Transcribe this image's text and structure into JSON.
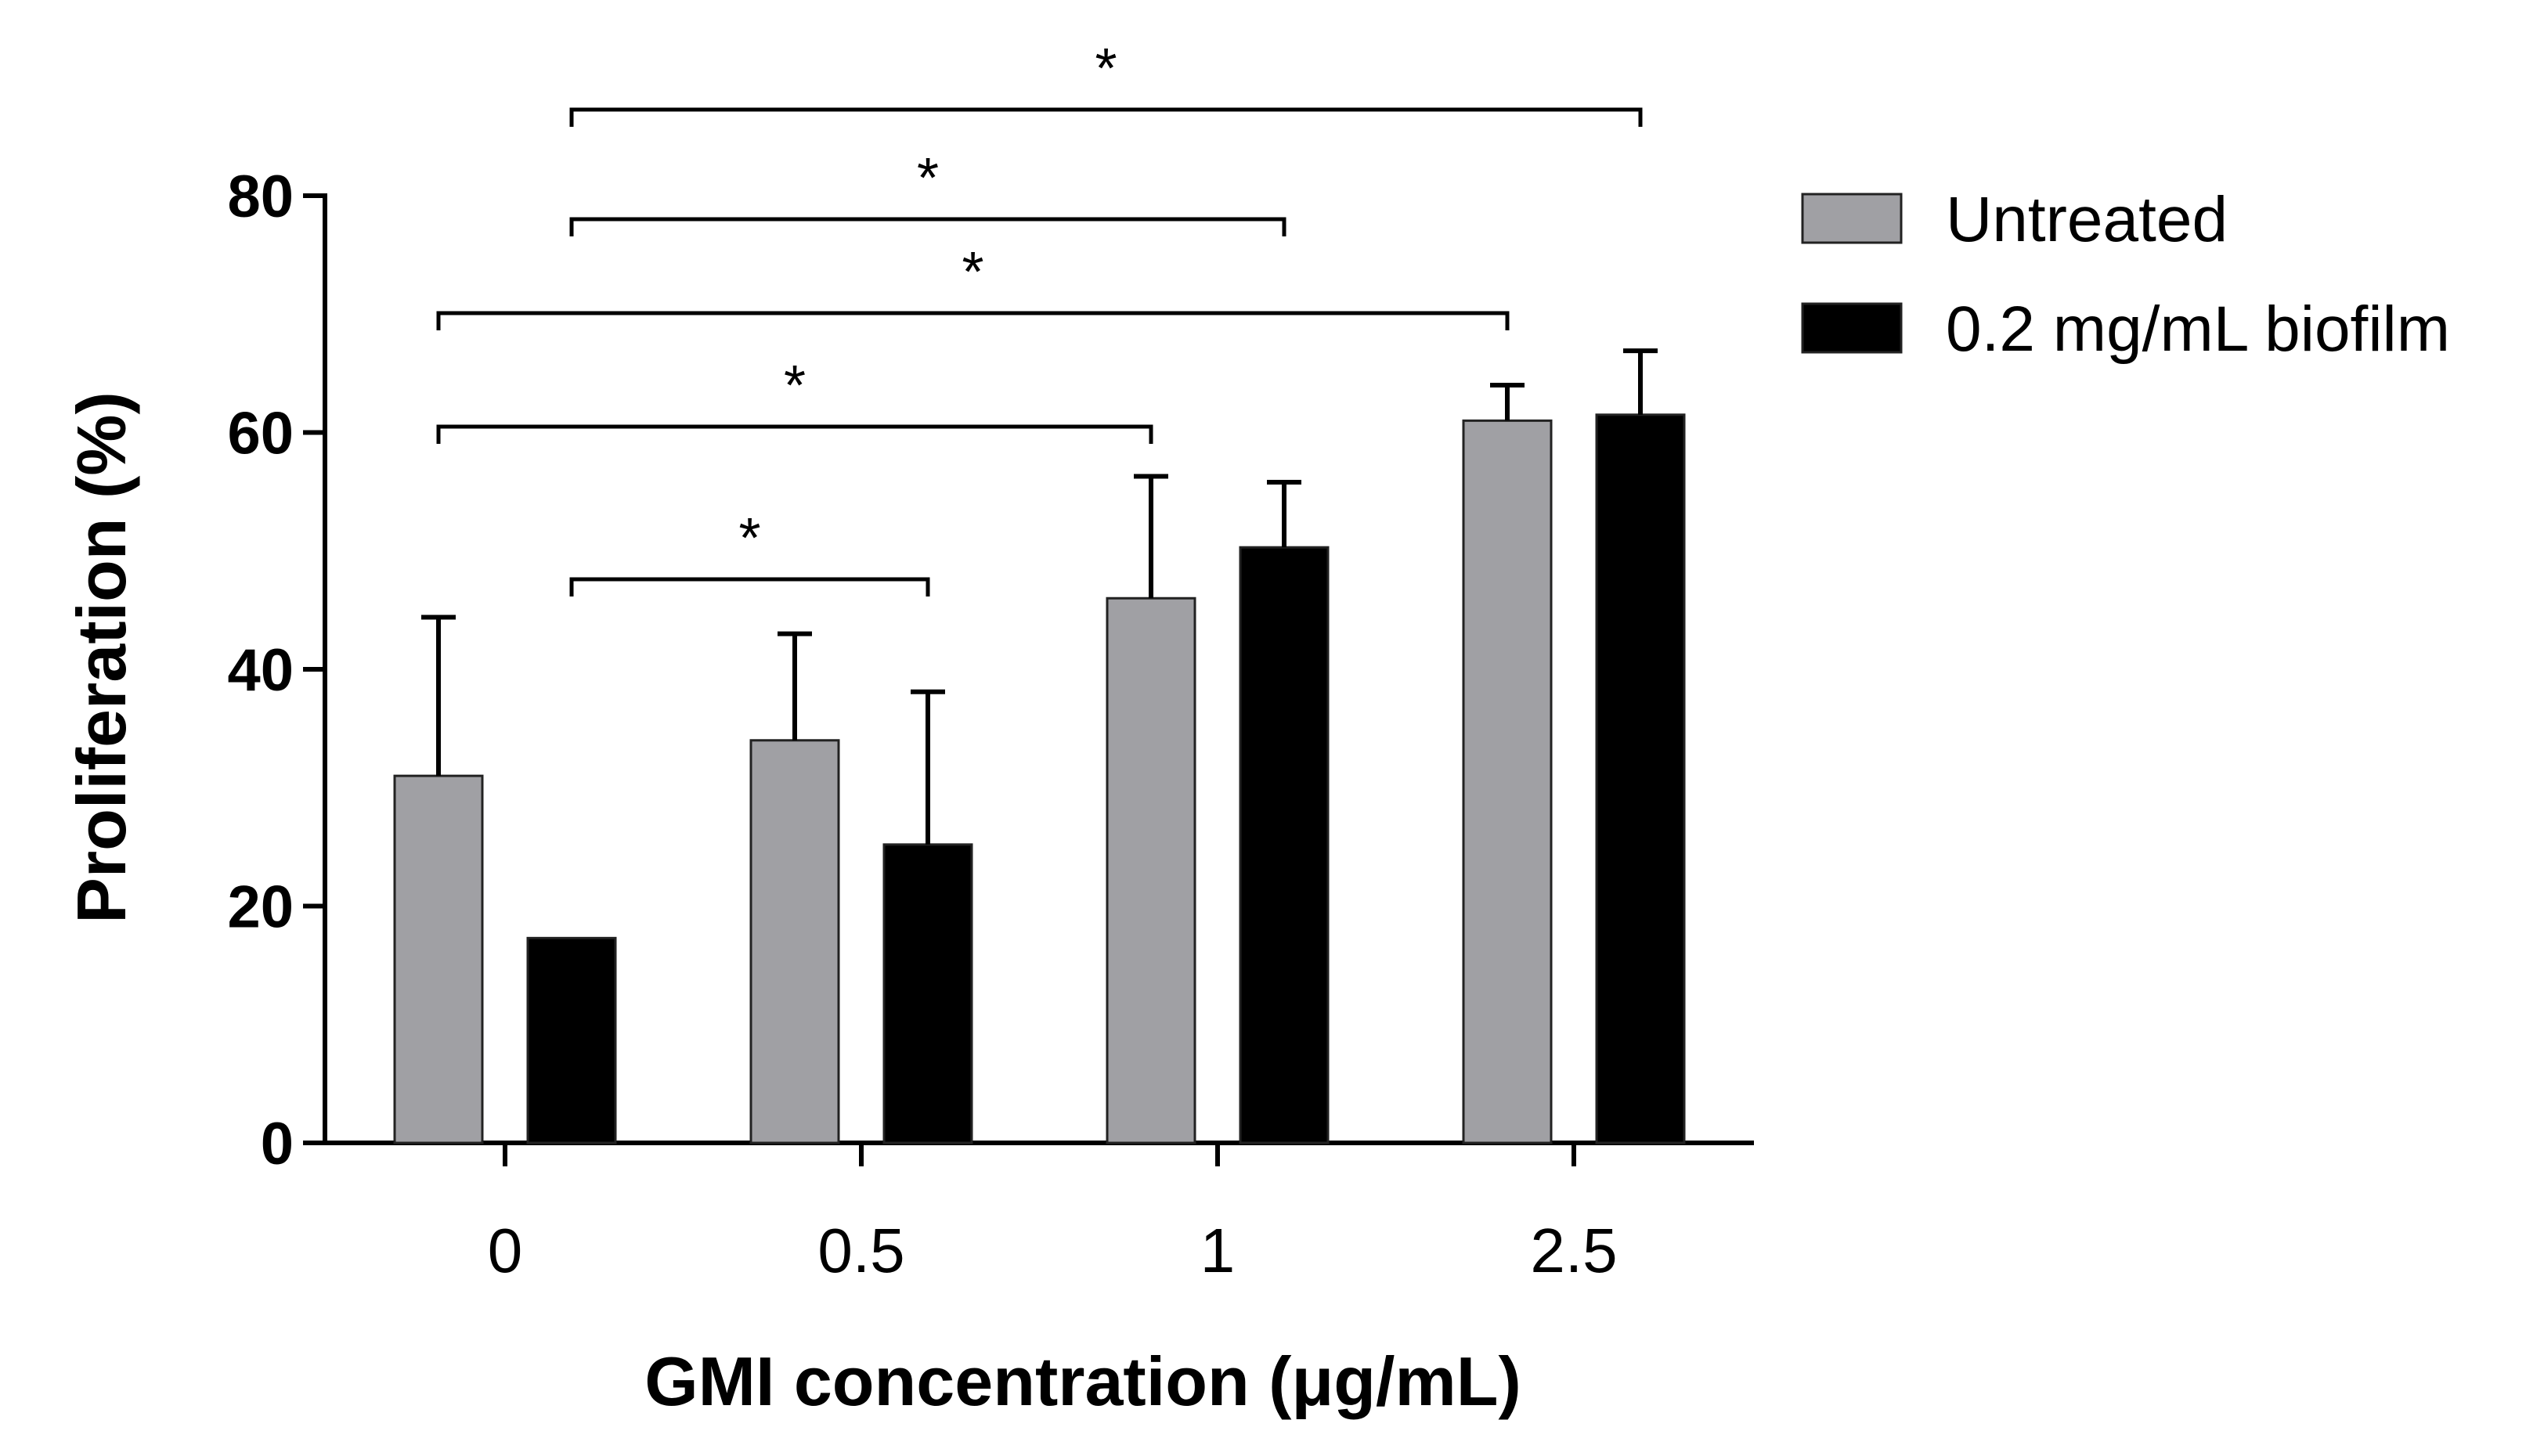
{
  "chart_data": {
    "type": "bar",
    "title": "",
    "xlabel": "GMI concentration (μg/mL)",
    "ylabel": "Proliferation (%)",
    "ylim": [
      0,
      80
    ],
    "yticks": [
      0,
      20,
      40,
      60,
      80
    ],
    "grid": false,
    "categories": [
      "0",
      "0.5",
      "1",
      "2.5"
    ],
    "series": [
      {
        "name": "Untreated",
        "color": "#a0a0a4",
        "values": [
          31,
          34,
          46,
          61
        ],
        "errors": [
          13.4,
          9,
          10.3,
          3
        ]
      },
      {
        "name": "0.2 mg/mL biofilm",
        "color": "#000000",
        "values": [
          17.3,
          25.2,
          50.3,
          61.5
        ],
        "errors": [
          0,
          12.9,
          5.5,
          5.4
        ]
      }
    ],
    "legend_position": "right",
    "significance": [
      {
        "from": {
          "category": 0,
          "series": 1
        },
        "to": {
          "category": 3,
          "series": 1
        },
        "label": "*"
      },
      {
        "from": {
          "category": 0,
          "series": 1
        },
        "to": {
          "category": 2,
          "series": 1
        },
        "label": "*"
      },
      {
        "from": {
          "category": 0,
          "series": 0
        },
        "to": {
          "category": 3,
          "series": 0
        },
        "label": "*"
      },
      {
        "from": {
          "category": 0,
          "series": 0
        },
        "to": {
          "category": 2,
          "series": 0
        },
        "label": "*"
      },
      {
        "from": {
          "category": 0,
          "series": 1
        },
        "to": {
          "category": 1,
          "series": 1
        },
        "label": "*"
      }
    ]
  }
}
